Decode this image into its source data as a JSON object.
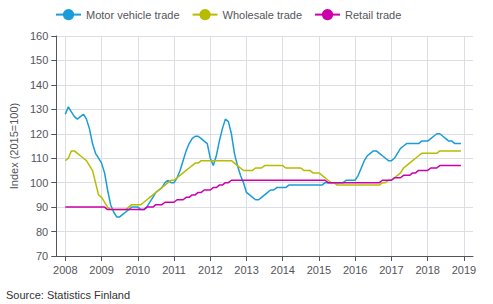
{
  "chart_data": {
    "type": "line",
    "ylabel": "Index (2015=100)",
    "source": "Source: Statistics Finland",
    "xlim": [
      2007.75,
      2019.25
    ],
    "xticks": [
      2008,
      2009,
      2010,
      2011,
      2012,
      2013,
      2014,
      2015,
      2016,
      2017,
      2018,
      2019
    ],
    "ylim": [
      70,
      160
    ],
    "yticks": [
      70,
      80,
      90,
      100,
      110,
      120,
      130,
      140,
      150,
      160
    ],
    "grid": true,
    "legend": "upper left",
    "x": [
      2008,
      2008.0833,
      2008.1667,
      2008.25,
      2008.3333,
      2008.4167,
      2008.5,
      2008.5833,
      2008.6667,
      2008.75,
      2008.8333,
      2008.9167,
      2009,
      2009.0833,
      2009.1667,
      2009.25,
      2009.3333,
      2009.4167,
      2009.5,
      2009.5833,
      2009.6667,
      2009.75,
      2009.8333,
      2009.9167,
      2010,
      2010.0833,
      2010.1667,
      2010.25,
      2010.3333,
      2010.4167,
      2010.5,
      2010.5833,
      2010.6667,
      2010.75,
      2010.8333,
      2010.9167,
      2011,
      2011.0833,
      2011.1667,
      2011.25,
      2011.3333,
      2011.4167,
      2011.5,
      2011.5833,
      2011.6667,
      2011.75,
      2011.8333,
      2011.9167,
      2012,
      2012.0833,
      2012.1667,
      2012.25,
      2012.3333,
      2012.4167,
      2012.5,
      2012.5833,
      2012.6667,
      2012.75,
      2012.8333,
      2012.9167,
      2013,
      2013.0833,
      2013.1667,
      2013.25,
      2013.3333,
      2013.4167,
      2013.5,
      2013.5833,
      2013.6667,
      2013.75,
      2013.8333,
      2013.9167,
      2014,
      2014.0833,
      2014.1667,
      2014.25,
      2014.3333,
      2014.4167,
      2014.5,
      2014.5833,
      2014.6667,
      2014.75,
      2014.8333,
      2014.9167,
      2015,
      2015.0833,
      2015.1667,
      2015.25,
      2015.3333,
      2015.4167,
      2015.5,
      2015.5833,
      2015.6667,
      2015.75,
      2015.8333,
      2015.9167,
      2016,
      2016.0833,
      2016.1667,
      2016.25,
      2016.3333,
      2016.4167,
      2016.5,
      2016.5833,
      2016.6667,
      2016.75,
      2016.8333,
      2016.9167,
      2017,
      2017.0833,
      2017.1667,
      2017.25,
      2017.3333,
      2017.4167,
      2017.5,
      2017.5833,
      2017.6667,
      2017.75,
      2017.8333,
      2017.9167,
      2018,
      2018.0833,
      2018.1667,
      2018.25,
      2018.3333,
      2018.4167,
      2018.5,
      2018.5833,
      2018.6667,
      2018.75,
      2018.8333,
      2018.9167
    ],
    "series": [
      {
        "name": "Motor vehicle trade",
        "color": "#1a9cd8",
        "values": [
          128,
          131,
          129,
          127,
          126,
          127,
          128,
          126,
          122,
          116,
          112,
          110,
          108,
          104,
          97,
          91,
          88,
          86,
          86,
          87,
          88,
          89,
          90,
          90,
          90,
          89,
          89,
          90,
          92,
          94,
          96,
          97,
          98,
          100,
          101,
          100,
          100,
          102,
          105,
          109,
          113,
          116,
          118,
          119,
          119,
          118,
          117,
          116,
          110,
          107,
          111,
          117,
          122,
          126,
          125,
          120,
          112,
          107,
          103,
          100,
          96,
          95,
          94,
          93,
          93,
          94,
          95,
          96,
          97,
          97,
          98,
          98,
          98,
          98,
          99,
          99,
          99,
          99,
          99,
          99,
          99,
          99,
          99,
          99,
          99,
          99,
          100,
          100,
          100,
          100,
          100,
          100,
          100,
          101,
          101,
          101,
          101,
          103,
          106,
          109,
          111,
          112,
          113,
          113,
          112,
          111,
          110,
          109,
          109,
          110,
          112,
          114,
          115,
          116,
          116,
          116,
          116,
          116,
          117,
          117,
          117,
          118,
          119,
          120,
          120,
          119,
          118,
          117,
          117,
          116,
          116,
          116
        ]
      },
      {
        "name": "Wholesale trade",
        "color": "#b8bc00",
        "values": [
          109,
          110,
          113,
          113,
          112,
          111,
          110,
          109,
          107,
          105,
          100,
          95,
          94,
          92,
          90,
          89,
          89,
          89,
          89,
          89,
          89,
          90,
          91,
          91,
          91,
          91,
          92,
          93,
          94,
          95,
          96,
          97,
          98,
          99,
          100,
          101,
          101,
          102,
          103,
          104,
          105,
          106,
          107,
          108,
          108,
          109,
          109,
          109,
          109,
          109,
          109,
          109,
          109,
          109,
          109,
          109,
          108,
          107,
          106,
          105,
          105,
          105,
          105,
          106,
          106,
          106,
          107,
          107,
          107,
          107,
          107,
          107,
          107,
          106,
          106,
          106,
          106,
          106,
          106,
          105,
          105,
          105,
          104,
          104,
          104,
          103,
          102,
          101,
          100,
          100,
          99,
          99,
          99,
          99,
          99,
          99,
          99,
          99,
          99,
          99,
          99,
          99,
          99,
          99,
          99,
          100,
          100,
          101,
          101,
          102,
          103,
          104,
          106,
          107,
          108,
          109,
          110,
          111,
          112,
          112,
          112,
          112,
          112,
          112,
          113,
          113,
          113,
          113,
          113,
          113,
          113,
          113
        ]
      },
      {
        "name": "Retail trade",
        "color": "#cc00aa",
        "values": [
          90,
          90,
          90,
          90,
          90,
          90,
          90,
          90,
          90,
          90,
          90,
          90,
          90,
          90,
          89,
          89,
          89,
          89,
          89,
          89,
          89,
          89,
          89,
          89,
          89,
          89,
          89,
          90,
          90,
          90,
          91,
          91,
          91,
          92,
          92,
          92,
          92,
          93,
          93,
          93,
          94,
          94,
          95,
          95,
          96,
          96,
          97,
          97,
          97,
          98,
          98,
          99,
          99,
          100,
          100,
          101,
          101,
          101,
          101,
          101,
          101,
          101,
          101,
          101,
          101,
          101,
          101,
          101,
          101,
          101,
          101,
          101,
          101,
          101,
          101,
          101,
          101,
          101,
          101,
          101,
          101,
          101,
          101,
          101,
          101,
          101,
          101,
          100,
          100,
          100,
          100,
          100,
          100,
          100,
          100,
          100,
          100,
          100,
          100,
          100,
          100,
          100,
          100,
          100,
          100,
          101,
          101,
          101,
          101,
          102,
          102,
          102,
          103,
          103,
          103,
          104,
          104,
          105,
          105,
          105,
          105,
          106,
          106,
          106,
          107,
          107,
          107,
          107,
          107,
          107,
          107,
          107
        ]
      }
    ]
  }
}
